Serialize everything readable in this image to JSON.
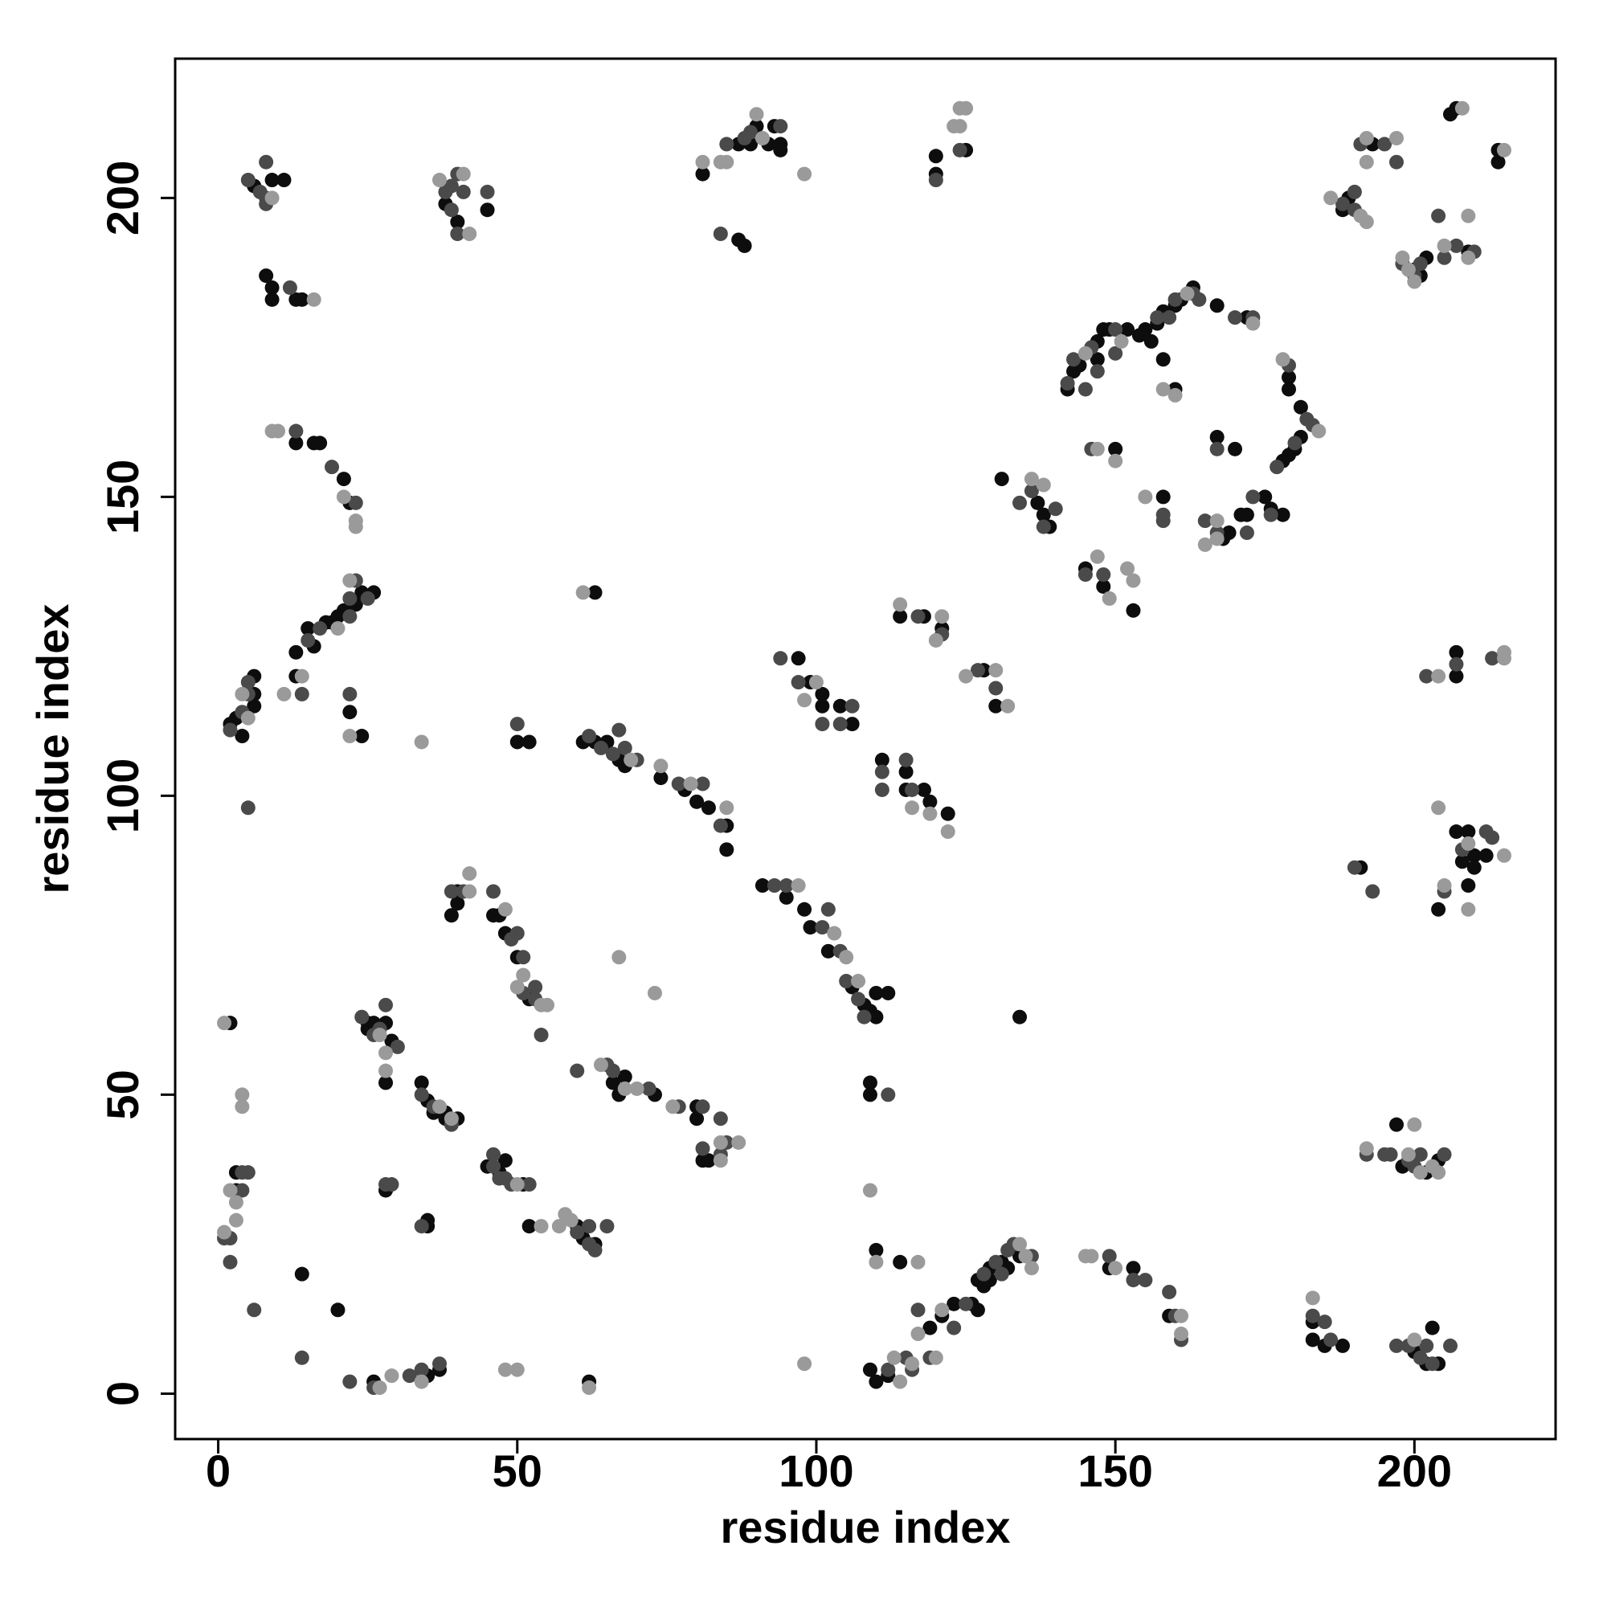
{
  "chart_data": {
    "type": "scatter",
    "xlabel": "residue index",
    "ylabel": "residue index",
    "xlim": [
      -7.2,
      223.6
    ],
    "ylim": [
      -7.6,
      223.3
    ],
    "xticks": [
      0,
      50,
      100,
      150,
      200
    ],
    "yticks": [
      0,
      50,
      100,
      150,
      200
    ],
    "grid": false,
    "series": [
      {
        "color": "#0d0d0d",
        "x": [
          6,
          9,
          11,
          8,
          9,
          9,
          13,
          14,
          13,
          16,
          17,
          21,
          22,
          13,
          13,
          15,
          16,
          18,
          19,
          20,
          21,
          23,
          24,
          26,
          2,
          3,
          4,
          6,
          6,
          6,
          22,
          24,
          38,
          40,
          45,
          50,
          52,
          61,
          63,
          65,
          67,
          68,
          63,
          74,
          78,
          80,
          82,
          85,
          85,
          91,
          95,
          98,
          99,
          102,
          106,
          108,
          109,
          110,
          110,
          112,
          134,
          97,
          99,
          101,
          101,
          104,
          106,
          111,
          115,
          115,
          118,
          119,
          122,
          114,
          118,
          121,
          128,
          130,
          81,
          87,
          89,
          90,
          92,
          93,
          94,
          94,
          87,
          88,
          120,
          120,
          125,
          142,
          143,
          144,
          147,
          148,
          147,
          149,
          152,
          154,
          155,
          156,
          157,
          158,
          160,
          161,
          163,
          167,
          172,
          158,
          160,
          179,
          179,
          181,
          181,
          180,
          179,
          178,
          175,
          176,
          178,
          172,
          171,
          169,
          168,
          167,
          170,
          150,
          158,
          145,
          148,
          153,
          131,
          137,
          138,
          139,
          188,
          189,
          193,
          200,
          201,
          202,
          209,
          207,
          206,
          214,
          214,
          207,
          207,
          207,
          209,
          208,
          210,
          210,
          212,
          204,
          209,
          191,
          197,
          198,
          202,
          204,
          183,
          183,
          185,
          188,
          200,
          202,
          204,
          203,
          149,
          153,
          159,
          109,
          110,
          112,
          119,
          121,
          123,
          126,
          127,
          127,
          128,
          129,
          129,
          131,
          132,
          134,
          110,
          114,
          109,
          109,
          66,
          67,
          68,
          73,
          80,
          80,
          81,
          82,
          40,
          39,
          40,
          46,
          47,
          48,
          50,
          52,
          25,
          25,
          26,
          28,
          29,
          28,
          34,
          35,
          36,
          38,
          38,
          40,
          45,
          47,
          48,
          51,
          52,
          60,
          61,
          63,
          2,
          3,
          3,
          14,
          20,
          28,
          35,
          35,
          26,
          35,
          37,
          62
        ],
        "values": [
          202,
          203,
          203,
          187,
          185,
          183,
          183,
          183,
          159,
          159,
          159,
          153,
          149,
          124,
          120,
          128,
          125,
          129,
          129,
          130,
          131,
          132,
          134,
          134,
          112,
          113,
          110,
          117,
          120,
          115,
          114,
          110,
          199,
          196,
          198,
          109,
          109,
          109,
          109,
          109,
          106,
          105,
          134,
          103,
          101,
          99,
          98,
          95,
          91,
          85,
          83,
          81,
          78,
          74,
          68,
          65,
          64,
          63,
          67,
          67,
          63,
          123,
          119,
          117,
          115,
          115,
          112,
          106,
          104,
          101,
          101,
          99,
          97,
          130,
          130,
          128,
          121,
          115,
          204,
          209,
          209,
          212,
          209,
          212,
          209,
          208,
          193,
          192,
          207,
          204,
          208,
          168,
          171,
          172,
          176,
          178,
          173,
          178,
          178,
          177,
          178,
          176,
          179,
          181,
          182,
          183,
          185,
          182,
          180,
          173,
          168,
          170,
          168,
          165,
          160,
          158,
          157,
          156,
          150,
          148,
          147,
          147,
          147,
          144,
          143,
          160,
          158,
          158,
          150,
          138,
          135,
          131,
          153,
          149,
          147,
          145,
          198,
          200,
          209,
          188,
          187,
          190,
          191,
          215,
          214,
          208,
          206,
          120,
          124,
          94,
          94,
          89,
          90,
          88,
          90,
          81,
          85,
          88,
          45,
          38,
          37,
          39,
          12,
          9,
          8,
          8,
          7,
          5,
          5,
          11,
          21,
          21,
          13,
          4,
          2,
          3,
          11,
          13,
          15,
          15,
          14,
          19,
          18,
          19,
          21,
          22,
          21,
          23,
          24,
          22,
          52,
          50,
          52,
          50,
          53,
          50,
          48,
          46,
          39,
          39,
          84,
          80,
          82,
          80,
          80,
          77,
          73,
          66,
          62,
          61,
          62,
          62,
          59,
          52,
          52,
          49,
          47,
          46,
          47,
          46,
          38,
          37,
          39,
          35,
          28,
          28,
          26,
          25,
          62,
          37,
          34,
          20,
          14,
          34,
          28,
          29,
          2,
          3,
          4,
          2
        ]
      },
      {
        "color": "#4a4a4a",
        "x": [
          5,
          7,
          8,
          8,
          8,
          12,
          13,
          19,
          23,
          15,
          17,
          22,
          22,
          23,
          25,
          2,
          4,
          5,
          5,
          5,
          14,
          22,
          38,
          39,
          40,
          39,
          40,
          45,
          41,
          50,
          62,
          64,
          66,
          67,
          68,
          70,
          77,
          81,
          84,
          93,
          95,
          101,
          102,
          104,
          105,
          107,
          108,
          94,
          97,
          101,
          104,
          106,
          111,
          111,
          115,
          116,
          117,
          121,
          127,
          130,
          85,
          88,
          89,
          94,
          84,
          120,
          124,
          142,
          143,
          145,
          146,
          147,
          150,
          150,
          157,
          159,
          160,
          163,
          164,
          170,
          173,
          179,
          182,
          183,
          180,
          177,
          176,
          173,
          172,
          167,
          165,
          167,
          146,
          158,
          158,
          145,
          148,
          134,
          136,
          140,
          138,
          188,
          190,
          190,
          191,
          195,
          197,
          198,
          200,
          201,
          204,
          205,
          207,
          210,
          202,
          207,
          213,
          208,
          212,
          213,
          205,
          190,
          193,
          192,
          195,
          196,
          199,
          200,
          201,
          205,
          183,
          185,
          186,
          197,
          199,
          201,
          203,
          202,
          206,
          149,
          153,
          155,
          159,
          160,
          161,
          112,
          115,
          116,
          117,
          119,
          123,
          125,
          128,
          130,
          131,
          132,
          133,
          136,
          112,
          60,
          65,
          66,
          72,
          77,
          81,
          81,
          84,
          85,
          84,
          39,
          41,
          46,
          49,
          50,
          51,
          51,
          53,
          53,
          54,
          24,
          26,
          27,
          28,
          30,
          34,
          36,
          39,
          46,
          46,
          47,
          48,
          49,
          52,
          60,
          62,
          62,
          63,
          65,
          4,
          5,
          4,
          1,
          2,
          2,
          6,
          14,
          28,
          29,
          34,
          22,
          26,
          32,
          34,
          37
        ],
        "values": [
          203,
          201,
          200,
          206,
          199,
          185,
          161,
          155,
          149,
          126,
          128,
          130,
          133,
          136,
          133,
          111,
          114,
          117,
          119,
          98,
          117,
          117,
          201,
          202,
          204,
          198,
          194,
          201,
          201,
          112,
          110,
          108,
          107,
          111,
          108,
          106,
          102,
          102,
          95,
          85,
          85,
          78,
          81,
          74,
          69,
          66,
          63,
          123,
          119,
          112,
          112,
          115,
          104,
          101,
          106,
          101,
          130,
          127,
          121,
          118,
          209,
          210,
          211,
          212,
          194,
          203,
          208,
          169,
          173,
          168,
          175,
          171,
          178,
          174,
          180,
          180,
          183,
          184,
          183,
          180,
          180,
          172,
          163,
          162,
          159,
          155,
          147,
          150,
          144,
          144,
          146,
          158,
          158,
          147,
          146,
          137,
          137,
          149,
          151,
          148,
          145,
          199,
          198,
          201,
          209,
          209,
          206,
          189,
          187,
          189,
          197,
          190,
          192,
          191,
          120,
          122,
          123,
          91,
          94,
          93,
          84,
          88,
          84,
          40,
          40,
          40,
          39,
          38,
          40,
          40,
          13,
          12,
          9,
          8,
          8,
          6,
          5,
          8,
          8,
          23,
          19,
          19,
          17,
          13,
          9,
          4,
          6,
          4,
          14,
          6,
          11,
          15,
          20,
          22,
          20,
          24,
          25,
          23,
          50,
          54,
          55,
          54,
          51,
          48,
          48,
          41,
          40,
          42,
          46,
          84,
          84,
          84,
          76,
          77,
          73,
          67,
          68,
          66,
          60,
          63,
          60,
          61,
          65,
          58,
          50,
          48,
          45,
          40,
          38,
          36,
          36,
          35,
          35,
          27,
          25,
          28,
          24,
          28,
          37,
          37,
          34,
          26,
          26,
          22,
          14,
          6,
          35,
          35,
          28,
          2,
          1,
          3,
          4,
          5
        ]
      },
      {
        "color": "#9a9a9a",
        "x": [
          9,
          16,
          9,
          10,
          21,
          23,
          23,
          22,
          20,
          14,
          5,
          4,
          11,
          22,
          37,
          41,
          42,
          34,
          61,
          69,
          74,
          79,
          85,
          97,
          103,
          105,
          107,
          98,
          100,
          116,
          119,
          122,
          114,
          121,
          120,
          125,
          130,
          132,
          81,
          84,
          85,
          90,
          91,
          98,
          123,
          124,
          125,
          124,
          145,
          151,
          162,
          173,
          158,
          160,
          178,
          184,
          167,
          165,
          167,
          147,
          150,
          155,
          147,
          149,
          152,
          153,
          136,
          138,
          186,
          191,
          192,
          192,
          192,
          197,
          198,
          199,
          200,
          205,
          209,
          209,
          208,
          215,
          204,
          215,
          215,
          204,
          209,
          215,
          205,
          209,
          192,
          199,
          200,
          201,
          203,
          204,
          183,
          200,
          145,
          146,
          150,
          161,
          161,
          113,
          114,
          116,
          117,
          120,
          121,
          134,
          135,
          136,
          110,
          117,
          109,
          64,
          68,
          70,
          76,
          84,
          84,
          87,
          42,
          42,
          48,
          51,
          50,
          54,
          55,
          67,
          73,
          27,
          28,
          28,
          37,
          39,
          50,
          54,
          57,
          58,
          59,
          1,
          4,
          4,
          2,
          3,
          3,
          1,
          27,
          29,
          34,
          48,
          50,
          62,
          98
        ],
        "values": [
          200,
          183,
          161,
          161,
          150,
          146,
          145,
          136,
          128,
          120,
          113,
          117,
          117,
          110,
          203,
          204,
          194,
          109,
          134,
          106,
          105,
          102,
          98,
          85,
          77,
          73,
          69,
          116,
          119,
          98,
          97,
          94,
          132,
          130,
          126,
          120,
          121,
          115,
          206,
          206,
          206,
          214,
          210,
          204,
          212,
          215,
          215,
          212,
          174,
          176,
          184,
          179,
          168,
          167,
          173,
          161,
          143,
          142,
          146,
          158,
          156,
          150,
          140,
          133,
          138,
          136,
          153,
          152,
          200,
          197,
          196,
          210,
          206,
          210,
          190,
          188,
          186,
          192,
          197,
          190,
          215,
          208,
          120,
          124,
          123,
          98,
          92,
          90,
          85,
          81,
          41,
          40,
          45,
          37,
          38,
          37,
          16,
          9,
          23,
          23,
          21,
          13,
          10,
          6,
          2,
          5,
          10,
          6,
          14,
          25,
          23,
          21,
          22,
          22,
          34,
          55,
          51,
          51,
          48,
          42,
          39,
          42,
          87,
          84,
          81,
          70,
          68,
          65,
          65,
          73,
          67,
          60,
          57,
          54,
          48,
          46,
          35,
          28,
          28,
          30,
          29,
          62,
          50,
          48,
          34,
          32,
          29,
          27,
          1,
          3,
          2,
          4,
          4,
          1,
          5
        ]
      }
    ]
  }
}
